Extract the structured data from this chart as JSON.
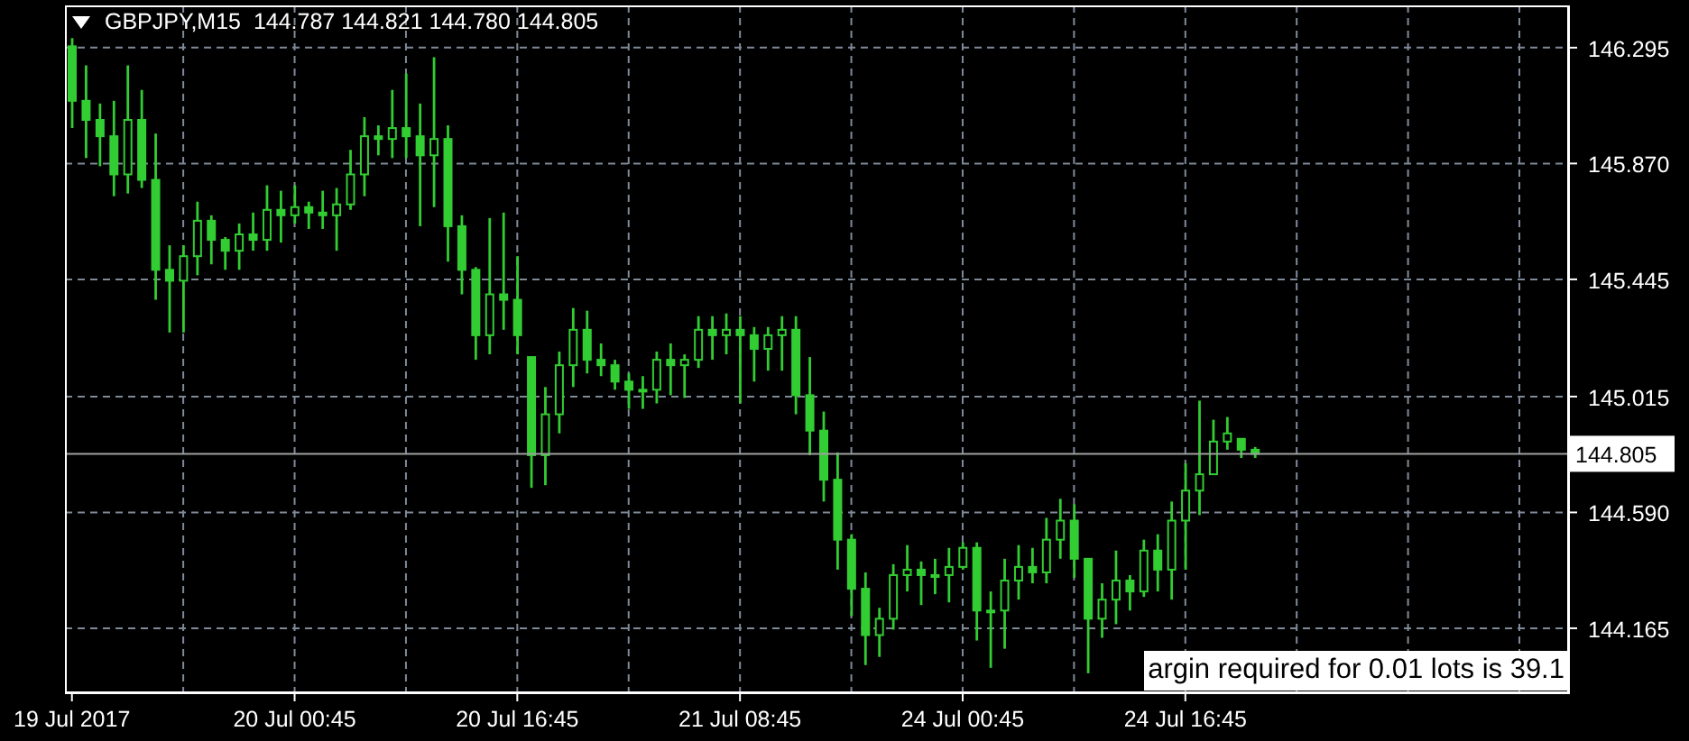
{
  "chart_data": {
    "type": "candlestick",
    "title": "GBPJPY,M15  144.787 144.821 144.780 144.805",
    "annotations": [
      "argin required for 0.01 lots is 39.1"
    ],
    "categories": [
      "19 Jul 2017",
      null,
      null,
      null,
      null,
      null,
      null,
      null,
      null,
      null,
      null,
      null,
      null,
      null,
      null,
      null,
      "20 Jul 00:45",
      null,
      null,
      null,
      null,
      null,
      null,
      null,
      null,
      null,
      null,
      null,
      null,
      null,
      null,
      null,
      "20 Jul 16:45",
      null,
      null,
      null,
      null,
      null,
      null,
      null,
      null,
      null,
      null,
      null,
      null,
      null,
      null,
      null,
      "21 Jul 08:45",
      null,
      null,
      null,
      null,
      null,
      null,
      null,
      null,
      null,
      null,
      null,
      null,
      null,
      null,
      null,
      "24 Jul 00:45",
      null,
      null,
      null,
      null,
      null,
      null,
      null,
      null,
      null,
      null,
      null,
      null,
      null,
      null,
      null,
      "24 Jul 16:45",
      null,
      null,
      null,
      null,
      null,
      null,
      null,
      null,
      null,
      null,
      null,
      null,
      null,
      null,
      null,
      null,
      null,
      null,
      null,
      null,
      null,
      null,
      null,
      null,
      null,
      null,
      null
    ],
    "color": "#32cd32",
    "ohlc": [
      [
        146.3,
        146.33,
        146.0,
        146.1
      ],
      [
        146.1,
        146.23,
        145.89,
        146.03
      ],
      [
        146.03,
        146.09,
        145.86,
        145.97
      ],
      [
        145.97,
        146.1,
        145.75,
        145.83
      ],
      [
        145.83,
        146.23,
        145.76,
        146.03
      ],
      [
        146.03,
        146.14,
        145.78,
        145.81
      ],
      [
        145.81,
        145.98,
        145.37,
        145.48
      ],
      [
        145.48,
        145.57,
        145.25,
        145.44
      ],
      [
        145.44,
        145.57,
        145.25,
        145.53
      ],
      [
        145.53,
        145.73,
        145.46,
        145.66
      ],
      [
        145.66,
        145.68,
        145.5,
        145.59
      ],
      [
        145.59,
        145.6,
        145.48,
        145.55
      ],
      [
        145.55,
        145.65,
        145.48,
        145.61
      ],
      [
        145.61,
        145.69,
        145.55,
        145.59
      ],
      [
        145.59,
        145.79,
        145.55,
        145.7
      ],
      [
        145.7,
        145.77,
        145.58,
        145.68
      ],
      [
        145.68,
        145.79,
        145.65,
        145.71
      ],
      [
        145.71,
        145.73,
        145.63,
        145.69
      ],
      [
        145.69,
        145.77,
        145.63,
        145.68
      ],
      [
        145.68,
        145.78,
        145.55,
        145.72
      ],
      [
        145.72,
        145.92,
        145.7,
        145.83
      ],
      [
        145.83,
        146.04,
        145.75,
        145.97
      ],
      [
        145.97,
        146.01,
        145.9,
        145.96
      ],
      [
        145.96,
        146.14,
        145.89,
        146.0
      ],
      [
        146.0,
        146.2,
        145.89,
        145.97
      ],
      [
        145.97,
        146.09,
        145.64,
        145.9
      ],
      [
        145.9,
        146.26,
        145.71,
        145.96
      ],
      [
        145.96,
        146.01,
        145.51,
        145.64
      ],
      [
        145.64,
        145.68,
        145.39,
        145.48
      ],
      [
        145.48,
        145.49,
        145.15,
        145.24
      ],
      [
        145.24,
        145.67,
        145.17,
        145.39
      ],
      [
        145.39,
        145.69,
        145.26,
        145.37
      ],
      [
        145.37,
        145.53,
        145.17,
        145.24
      ],
      [
        145.16,
        145.16,
        144.68,
        144.8
      ],
      [
        144.8,
        145.05,
        144.69,
        144.95
      ],
      [
        144.95,
        145.18,
        144.88,
        145.13
      ],
      [
        145.13,
        145.34,
        145.05,
        145.26
      ],
      [
        145.26,
        145.33,
        145.1,
        145.15
      ],
      [
        145.15,
        145.21,
        145.09,
        145.13
      ],
      [
        145.13,
        145.15,
        145.04,
        145.07
      ],
      [
        145.07,
        145.1,
        144.97,
        145.04
      ],
      [
        145.04,
        145.09,
        144.97,
        145.04
      ],
      [
        145.04,
        145.18,
        144.99,
        145.15
      ],
      [
        145.15,
        145.21,
        145.02,
        145.13
      ],
      [
        145.13,
        145.17,
        145.01,
        145.15
      ],
      [
        145.15,
        145.31,
        145.12,
        145.26
      ],
      [
        145.26,
        145.31,
        145.15,
        145.24
      ],
      [
        145.24,
        145.32,
        145.17,
        145.26
      ],
      [
        145.26,
        145.31,
        144.99,
        145.24
      ],
      [
        145.24,
        145.27,
        145.07,
        145.19
      ],
      [
        145.19,
        145.27,
        145.11,
        145.24
      ],
      [
        145.24,
        145.31,
        145.11,
        145.26
      ],
      [
        145.26,
        145.31,
        144.95,
        145.02
      ],
      [
        145.02,
        145.16,
        144.8,
        144.89
      ],
      [
        144.89,
        144.96,
        144.63,
        144.71
      ],
      [
        144.71,
        144.81,
        144.38,
        144.49
      ],
      [
        144.49,
        144.51,
        144.21,
        144.31
      ],
      [
        144.31,
        144.37,
        144.03,
        144.14
      ],
      [
        144.14,
        144.24,
        144.06,
        144.2
      ],
      [
        144.2,
        144.4,
        144.16,
        144.36
      ],
      [
        144.36,
        144.47,
        144.3,
        144.38
      ],
      [
        144.38,
        144.41,
        144.25,
        144.36
      ],
      [
        144.36,
        144.42,
        144.29,
        144.36
      ],
      [
        144.36,
        144.46,
        144.26,
        144.39
      ],
      [
        144.39,
        144.48,
        144.38,
        144.46
      ],
      [
        144.46,
        144.48,
        144.12,
        144.23
      ],
      [
        144.23,
        144.3,
        144.02,
        144.23
      ],
      [
        144.23,
        144.42,
        144.09,
        144.34
      ],
      [
        144.34,
        144.47,
        144.27,
        144.39
      ],
      [
        144.39,
        144.46,
        144.33,
        144.37
      ],
      [
        144.37,
        144.57,
        144.33,
        144.49
      ],
      [
        144.49,
        144.64,
        144.42,
        144.56
      ],
      [
        144.56,
        144.62,
        144.35,
        144.42
      ],
      [
        144.42,
        144.42,
        144.0,
        144.2
      ],
      [
        144.2,
        144.33,
        144.13,
        144.27
      ],
      [
        144.27,
        144.45,
        144.18,
        144.34
      ],
      [
        144.34,
        144.36,
        144.23,
        144.3
      ],
      [
        144.3,
        144.49,
        144.28,
        144.45
      ],
      [
        144.45,
        144.51,
        144.3,
        144.38
      ],
      [
        144.38,
        144.63,
        144.27,
        144.56
      ],
      [
        144.56,
        144.77,
        144.38,
        144.67
      ],
      [
        144.67,
        145.0,
        144.58,
        144.73
      ],
      [
        144.73,
        144.93,
        144.73,
        144.85
      ],
      [
        144.85,
        144.94,
        144.82,
        144.88
      ],
      [
        144.86,
        144.86,
        144.79,
        144.82
      ],
      [
        144.82,
        144.83,
        144.79,
        144.805
      ],
      null,
      null,
      null,
      null,
      null,
      null,
      null,
      null,
      null,
      null,
      null,
      null,
      null,
      null,
      null,
      null,
      null,
      null,
      null,
      null,
      null,
      null
    ],
    "ylim": [
      143.93,
      146.45
    ],
    "yticks": [
      144.165,
      {
        "value": 144.59,
        "label": "144.590"
      },
      145.015,
      145.445,
      {
        "value": 145.87,
        "label": "145.870"
      },
      146.295
    ],
    "grid": true,
    "ref_lines": [
      {
        "axis": "y",
        "value": 144.805,
        "label": "144.805",
        "color": "#a0a0a0"
      }
    ]
  }
}
